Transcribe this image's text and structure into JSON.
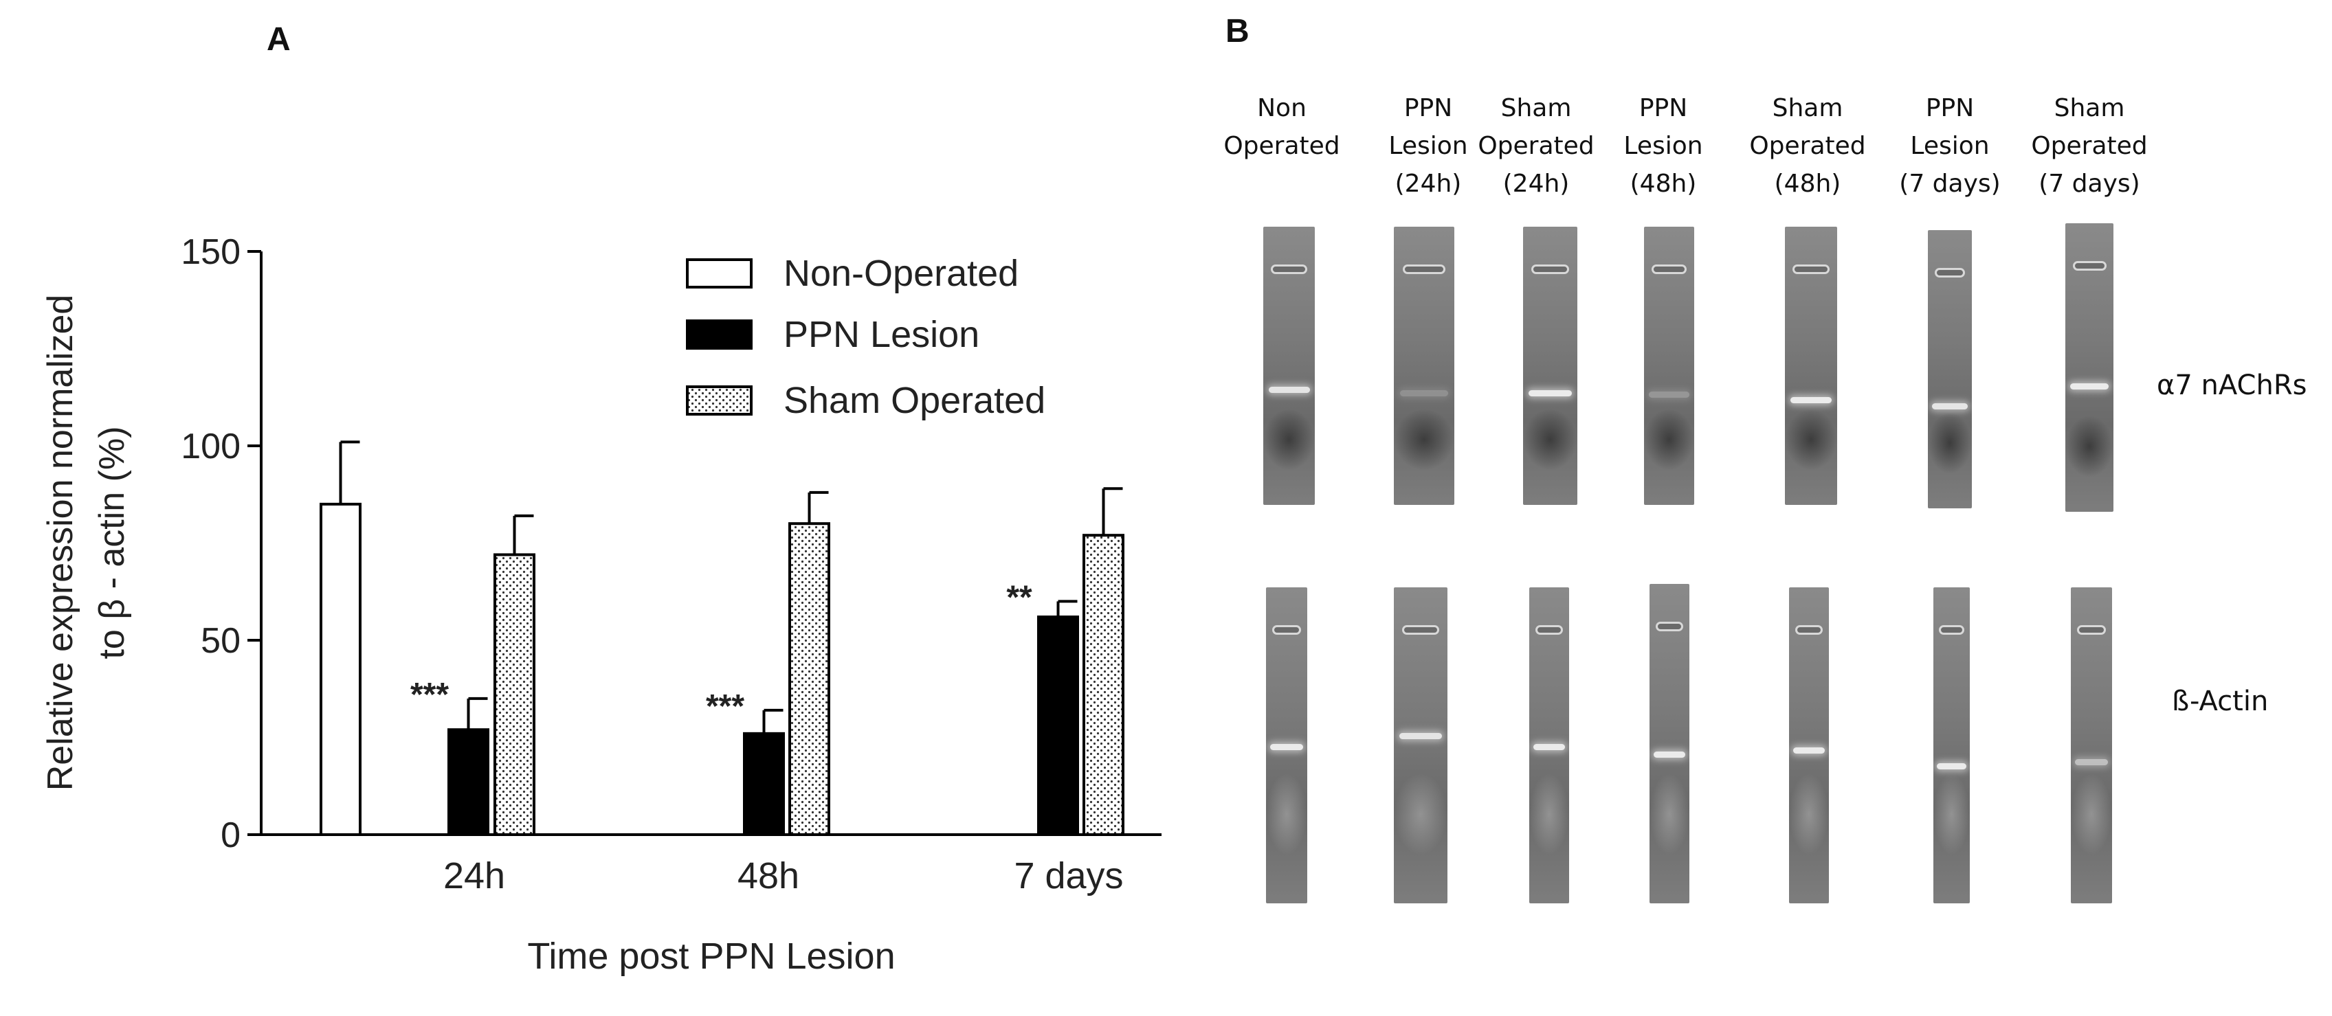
{
  "panel_a": {
    "letter": "A"
  },
  "panel_b": {
    "letter": "B"
  },
  "chart_data": {
    "type": "bar",
    "ylabel_line1": "Relative expression normalized",
    "ylabel_line2": "to β - actin (%)",
    "xlabel": "Time post PPN Lesion",
    "ylim": [
      0,
      150
    ],
    "yticks": [
      "0",
      "50",
      "100",
      "150"
    ],
    "categories": [
      "24h",
      "48h",
      "7 days"
    ],
    "legend_position": "top-right",
    "series": [
      {
        "name": "Non-Operated",
        "fill": "#ffffff",
        "values": [
          85,
          null,
          null
        ],
        "errors": [
          16,
          null,
          null
        ]
      },
      {
        "name": "PPN Lesion",
        "fill": "#000000",
        "values": [
          27,
          26,
          56
        ],
        "errors": [
          8,
          6,
          4
        ]
      },
      {
        "name": "Sham Operated",
        "fill": "dotted",
        "values": [
          72,
          80,
          77
        ],
        "errors": [
          10,
          8,
          12
        ]
      }
    ],
    "annotations": [
      {
        "text": "***",
        "category": "24h",
        "series": "PPN Lesion"
      },
      {
        "text": "***",
        "category": "48h",
        "series": "PPN Lesion"
      },
      {
        "text": "**",
        "category": "7 days",
        "series": "PPN Lesion"
      }
    ]
  },
  "gel": {
    "lanes": [
      {
        "label": "Non\nOperated"
      },
      {
        "label": "PPN\nLesion\n(24h)"
      },
      {
        "label": "Sham\nOperated\n(24h)"
      },
      {
        "label": "PPN\nLesion\n(48h)"
      },
      {
        "label": "Sham\nOperated\n(48h)"
      },
      {
        "label": "PPN\nLesion\n(7 days)"
      },
      {
        "label": "Sham\nOperated\n(7 days)"
      }
    ],
    "rows": [
      {
        "label": "α7 nAChRs"
      },
      {
        "label": "ß-Actin"
      }
    ],
    "band_intensity": {
      "alpha7": [
        0.9,
        0.25,
        0.95,
        0.3,
        0.95,
        0.9,
        0.95
      ],
      "actin": [
        0.95,
        0.9,
        0.95,
        0.95,
        0.95,
        0.95,
        0.6
      ]
    }
  }
}
